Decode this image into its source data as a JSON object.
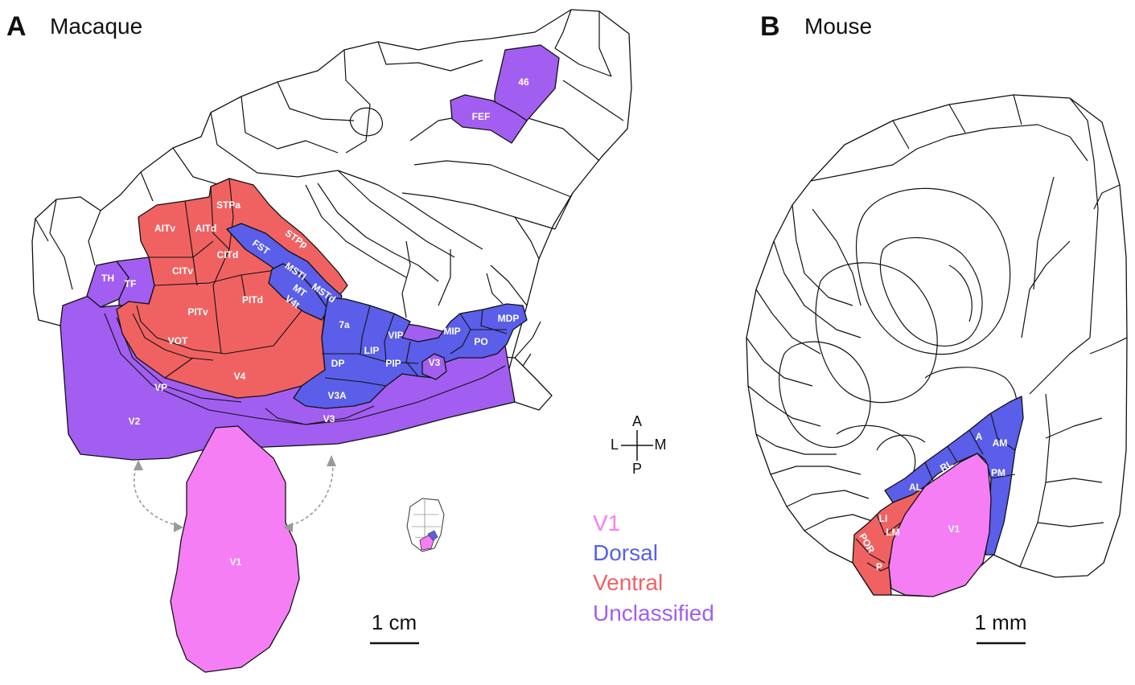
{
  "panel_a": {
    "letter": "A",
    "title": "Macaque",
    "areas": {
      "fef": "FEF",
      "a46": "46",
      "th": "TH",
      "tf": "TF",
      "stpa": "STPa",
      "aitv": "AITv",
      "aitd": "AITd",
      "stpp": "STPp",
      "fst": "FST",
      "citv": "CITv",
      "citd": "CITd",
      "msti": "MSTl",
      "mstd": "MSTd",
      "mt": "MT",
      "v4t": "V4t",
      "pitv": "PITv",
      "pitd": "PITd",
      "vot": "VOT",
      "v4": "V4",
      "a7a": "7a",
      "lip": "LIP",
      "vip": "VIP",
      "mip": "MIP",
      "mdp": "MDP",
      "po": "PO",
      "dp": "DP",
      "pip": "PIP",
      "v3a": "V3A",
      "v3_top": "V3",
      "vp": "VP",
      "v2": "V2",
      "v3": "V3",
      "v1": "V1"
    },
    "scale_label": "1 cm"
  },
  "compass": {
    "a": "A",
    "p": "P",
    "l": "L",
    "m": "M"
  },
  "legend": [
    {
      "label": "V1",
      "color": "#f57ef5"
    },
    {
      "label": "Dorsal",
      "color": "#5a5ee8"
    },
    {
      "label": "Ventral",
      "color": "#f06262"
    },
    {
      "label": "Unclassified",
      "color": "#a25ef0"
    }
  ],
  "panel_b": {
    "letter": "B",
    "title": "Mouse",
    "areas": {
      "a": "A",
      "am": "AM",
      "rl": "RL",
      "al": "AL",
      "pm": "PM",
      "li": "LI",
      "lm": "LM",
      "por": "POR",
      "p": "P",
      "v1": "V1"
    },
    "scale_label": "1 mm"
  },
  "colors": {
    "v1": "#f57ef5",
    "dorsal": "#5a5ee8",
    "ventral": "#f06262",
    "unclassified": "#a25ef0"
  }
}
